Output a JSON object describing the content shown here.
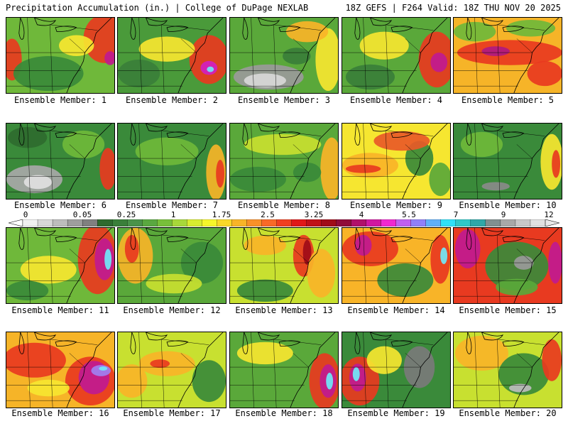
{
  "header": {
    "left": "Precipitation Accumulation (in.) | College of DuPage NEXLAB",
    "right": "18Z GEFS | F264 Valid: 18Z THU NOV 20 2025"
  },
  "colorbar": {
    "ticks": [
      "0",
      "0.05",
      "0.25",
      "1",
      "1.75",
      "2.5",
      "3.25",
      "4",
      "5.5",
      "7",
      "9",
      "12"
    ],
    "colors": [
      "#f0f0f0",
      "#d8d8d8",
      "#bdbdbd",
      "#9e9e9e",
      "#808080",
      "#2f6b2f",
      "#3a7f3a",
      "#4a934a",
      "#5aa840",
      "#78c03a",
      "#a8d83a",
      "#d8ec30",
      "#f6f62a",
      "#f8d828",
      "#f8b428",
      "#f89028",
      "#f86a28",
      "#f04020",
      "#e01818",
      "#c01018",
      "#a00c18",
      "#900c3a",
      "#b0106a",
      "#d018a0",
      "#f028d0",
      "#c060f0",
      "#9080f8",
      "#60b0f8",
      "#30e0f8",
      "#30c8c8",
      "#30a8a8",
      "#809090",
      "#a8a8a8",
      "#c8c8c8",
      "#e0e0e0"
    ]
  },
  "panels": [
    {
      "label": "Ensemble Member: 1",
      "base": "#6fb83a",
      "blobs": [
        {
          "cx": 140,
          "cy": 30,
          "rx": 30,
          "ry": 35,
          "c": "#e83a20"
        },
        {
          "cx": 148,
          "cy": 58,
          "rx": 8,
          "ry": 10,
          "c": "#c01a90"
        },
        {
          "cx": 8,
          "cy": 60,
          "rx": 14,
          "ry": 30,
          "c": "#e83a20"
        },
        {
          "cx": 60,
          "cy": 80,
          "rx": 50,
          "ry": 25,
          "c": "#3a8a3a"
        },
        {
          "cx": 100,
          "cy": 40,
          "rx": 25,
          "ry": 15,
          "c": "#f6e630"
        }
      ]
    },
    {
      "label": "Ensemble Member: 2",
      "base": "#4a9a3a",
      "blobs": [
        {
          "cx": 130,
          "cy": 60,
          "rx": 28,
          "ry": 35,
          "c": "#e83a20"
        },
        {
          "cx": 130,
          "cy": 72,
          "rx": 12,
          "ry": 10,
          "c": "#d020c0"
        },
        {
          "cx": 132,
          "cy": 74,
          "rx": 5,
          "ry": 4,
          "c": "#70e8f8"
        },
        {
          "cx": 70,
          "cy": 45,
          "rx": 40,
          "ry": 18,
          "c": "#f6e630"
        },
        {
          "cx": 30,
          "cy": 80,
          "rx": 30,
          "ry": 20,
          "c": "#3a7f3a"
        }
      ]
    },
    {
      "label": "Ensemble Member: 3",
      "base": "#5aa83a",
      "blobs": [
        {
          "cx": 55,
          "cy": 85,
          "rx": 50,
          "ry": 18,
          "c": "#9a9a9a"
        },
        {
          "cx": 50,
          "cy": 90,
          "rx": 30,
          "ry": 10,
          "c": "#d8d8d8"
        },
        {
          "cx": 140,
          "cy": 60,
          "rx": 18,
          "ry": 45,
          "c": "#f6e630"
        },
        {
          "cx": 110,
          "cy": 20,
          "rx": 30,
          "ry": 15,
          "c": "#f8b428"
        },
        {
          "cx": 95,
          "cy": 55,
          "rx": 20,
          "ry": 12,
          "c": "#3a7f3a"
        }
      ]
    },
    {
      "label": "Ensemble Member: 4",
      "base": "#5aa83a",
      "blobs": [
        {
          "cx": 135,
          "cy": 60,
          "rx": 26,
          "ry": 40,
          "c": "#e83a20"
        },
        {
          "cx": 138,
          "cy": 64,
          "rx": 12,
          "ry": 14,
          "c": "#c01a90"
        },
        {
          "cx": 60,
          "cy": 40,
          "rx": 35,
          "ry": 20,
          "c": "#f6e630"
        },
        {
          "cx": 40,
          "cy": 85,
          "rx": 35,
          "ry": 18,
          "c": "#3a7f3a"
        }
      ]
    },
    {
      "label": "Ensemble Member: 5",
      "base": "#f6b428",
      "blobs": [
        {
          "cx": 80,
          "cy": 50,
          "rx": 75,
          "ry": 18,
          "c": "#e83a20"
        },
        {
          "cx": 60,
          "cy": 48,
          "rx": 20,
          "ry": 7,
          "c": "#b01a80"
        },
        {
          "cx": 130,
          "cy": 80,
          "rx": 25,
          "ry": 18,
          "c": "#e83a20"
        },
        {
          "cx": 30,
          "cy": 20,
          "rx": 30,
          "ry": 14,
          "c": "#6fb83a"
        },
        {
          "cx": 110,
          "cy": 15,
          "rx": 35,
          "ry": 12,
          "c": "#6fb83a"
        }
      ]
    },
    {
      "label": "Ensemble Member: 6",
      "base": "#3a8a3a",
      "blobs": [
        {
          "cx": 40,
          "cy": 80,
          "rx": 40,
          "ry": 20,
          "c": "#a8a8a8"
        },
        {
          "cx": 45,
          "cy": 84,
          "rx": 20,
          "ry": 10,
          "c": "#e0e0e0"
        },
        {
          "cx": 145,
          "cy": 65,
          "rx": 12,
          "ry": 30,
          "c": "#e83a20"
        },
        {
          "cx": 110,
          "cy": 30,
          "rx": 30,
          "ry": 20,
          "c": "#6fb83a"
        },
        {
          "cx": 30,
          "cy": 20,
          "rx": 28,
          "ry": 15,
          "c": "#2f6b2f"
        }
      ]
    },
    {
      "label": "Ensemble Member: 7",
      "base": "#3a8a3a",
      "blobs": [
        {
          "cx": 140,
          "cy": 70,
          "rx": 14,
          "ry": 40,
          "c": "#f6b428"
        },
        {
          "cx": 70,
          "cy": 40,
          "rx": 45,
          "ry": 20,
          "c": "#6fb83a"
        },
        {
          "cx": 146,
          "cy": 72,
          "rx": 6,
          "ry": 20,
          "c": "#e83a20"
        }
      ]
    },
    {
      "label": "Ensemble Member: 8",
      "base": "#5aa83a",
      "blobs": [
        {
          "cx": 145,
          "cy": 65,
          "rx": 16,
          "ry": 45,
          "c": "#f8b428"
        },
        {
          "cx": 75,
          "cy": 30,
          "rx": 55,
          "ry": 15,
          "c": "#c8e030"
        },
        {
          "cx": 40,
          "cy": 80,
          "rx": 40,
          "ry": 18,
          "c": "#3a8a3a"
        },
        {
          "cx": 110,
          "cy": 70,
          "rx": 20,
          "ry": 14,
          "c": "#3a8a3a"
        }
      ]
    },
    {
      "label": "Ensemble Member: 9",
      "base": "#f6e630",
      "blobs": [
        {
          "cx": 40,
          "cy": 60,
          "rx": 40,
          "ry": 18,
          "c": "#f8b428"
        },
        {
          "cx": 30,
          "cy": 65,
          "rx": 25,
          "ry": 6,
          "c": "#e83a20"
        },
        {
          "cx": 110,
          "cy": 50,
          "rx": 20,
          "ry": 25,
          "c": "#3a8a3a"
        },
        {
          "cx": 85,
          "cy": 25,
          "rx": 40,
          "ry": 14,
          "c": "#e85a28"
        },
        {
          "cx": 140,
          "cy": 80,
          "rx": 16,
          "ry": 24,
          "c": "#5aa83a"
        }
      ]
    },
    {
      "label": "Ensemble Member: 10",
      "base": "#3a8a3a",
      "blobs": [
        {
          "cx": 140,
          "cy": 55,
          "rx": 16,
          "ry": 40,
          "c": "#f6e630"
        },
        {
          "cx": 146,
          "cy": 58,
          "rx": 6,
          "ry": 20,
          "c": "#e83a20"
        },
        {
          "cx": 40,
          "cy": 30,
          "rx": 30,
          "ry": 18,
          "c": "#6fb83a"
        },
        {
          "cx": 60,
          "cy": 90,
          "rx": 20,
          "ry": 6,
          "c": "#8a8a8a"
        }
      ]
    },
    {
      "label": "Ensemble Member: 11",
      "base": "#6fb83a",
      "blobs": [
        {
          "cx": 130,
          "cy": 45,
          "rx": 28,
          "ry": 50,
          "c": "#e83a20"
        },
        {
          "cx": 140,
          "cy": 45,
          "rx": 14,
          "ry": 30,
          "c": "#c01a90"
        },
        {
          "cx": 145,
          "cy": 45,
          "rx": 5,
          "ry": 15,
          "c": "#70e8f8"
        },
        {
          "cx": 60,
          "cy": 60,
          "rx": 40,
          "ry": 20,
          "c": "#f6e630"
        },
        {
          "cx": 30,
          "cy": 90,
          "rx": 30,
          "ry": 14,
          "c": "#3a8a3a"
        }
      ]
    },
    {
      "label": "Ensemble Member: 12",
      "base": "#5aa83a",
      "blobs": [
        {
          "cx": 25,
          "cy": 40,
          "rx": 25,
          "ry": 40,
          "c": "#f6b428"
        },
        {
          "cx": 20,
          "cy": 30,
          "rx": 10,
          "ry": 20,
          "c": "#e83a20"
        },
        {
          "cx": 120,
          "cy": 50,
          "rx": 30,
          "ry": 30,
          "c": "#3a8a3a"
        },
        {
          "cx": 80,
          "cy": 80,
          "rx": 40,
          "ry": 14,
          "c": "#c8e030"
        }
      ]
    },
    {
      "label": "Ensemble Member: 13",
      "base": "#c8e030",
      "blobs": [
        {
          "cx": 105,
          "cy": 40,
          "rx": 15,
          "ry": 30,
          "c": "#e83a20"
        },
        {
          "cx": 110,
          "cy": 35,
          "rx": 6,
          "ry": 18,
          "c": "#a00c18"
        },
        {
          "cx": 130,
          "cy": 65,
          "rx": 20,
          "ry": 35,
          "c": "#f8b428"
        },
        {
          "cx": 50,
          "cy": 90,
          "rx": 40,
          "ry": 16,
          "c": "#3a8a3a"
        },
        {
          "cx": 50,
          "cy": 25,
          "rx": 30,
          "ry": 14,
          "c": "#f8b428"
        }
      ]
    },
    {
      "label": "Ensemble Member: 14",
      "base": "#f8b428",
      "blobs": [
        {
          "cx": 40,
          "cy": 30,
          "rx": 40,
          "ry": 25,
          "c": "#e83a20"
        },
        {
          "cx": 30,
          "cy": 25,
          "rx": 12,
          "ry": 15,
          "c": "#c01a90"
        },
        {
          "cx": 140,
          "cy": 45,
          "rx": 14,
          "ry": 35,
          "c": "#e83a20"
        },
        {
          "cx": 145,
          "cy": 40,
          "rx": 5,
          "ry": 12,
          "c": "#70e8f8"
        },
        {
          "cx": 90,
          "cy": 75,
          "rx": 40,
          "ry": 24,
          "c": "#3a8a3a"
        }
      ]
    },
    {
      "label": "Ensemble Member: 15",
      "base": "#e83a20",
      "blobs": [
        {
          "cx": 90,
          "cy": 55,
          "rx": 45,
          "ry": 35,
          "c": "#3a8a3a"
        },
        {
          "cx": 20,
          "cy": 30,
          "rx": 18,
          "ry": 28,
          "c": "#c01a90"
        },
        {
          "cx": 145,
          "cy": 50,
          "rx": 10,
          "ry": 30,
          "c": "#c01a90"
        },
        {
          "cx": 90,
          "cy": 85,
          "rx": 30,
          "ry": 12,
          "c": "#5aa83a"
        },
        {
          "cx": 100,
          "cy": 50,
          "rx": 14,
          "ry": 10,
          "c": "#9a9a9a"
        }
      ]
    },
    {
      "label": "Ensemble Member: 16",
      "base": "#f6b428",
      "blobs": [
        {
          "cx": 40,
          "cy": 40,
          "rx": 45,
          "ry": 25,
          "c": "#e83a20"
        },
        {
          "cx": 120,
          "cy": 70,
          "rx": 36,
          "ry": 35,
          "c": "#e83a20"
        },
        {
          "cx": 125,
          "cy": 65,
          "rx": 22,
          "ry": 24,
          "c": "#c01a90"
        },
        {
          "cx": 135,
          "cy": 55,
          "rx": 14,
          "ry": 8,
          "c": "#a080f0"
        },
        {
          "cx": 138,
          "cy": 52,
          "rx": 6,
          "ry": 3,
          "c": "#70e8f8"
        },
        {
          "cx": 60,
          "cy": 80,
          "rx": 30,
          "ry": 12,
          "c": "#f6e630"
        }
      ]
    },
    {
      "label": "Ensemble Member: 17",
      "base": "#c8e030",
      "blobs": [
        {
          "cx": 70,
          "cy": 45,
          "rx": 40,
          "ry": 18,
          "c": "#f8b428"
        },
        {
          "cx": 60,
          "cy": 45,
          "rx": 14,
          "ry": 6,
          "c": "#e83a20"
        },
        {
          "cx": 130,
          "cy": 70,
          "rx": 24,
          "ry": 30,
          "c": "#3a8a3a"
        },
        {
          "cx": 20,
          "cy": 70,
          "rx": 22,
          "ry": 24,
          "c": "#f8b428"
        }
      ]
    },
    {
      "label": "Ensemble Member: 18",
      "base": "#5aa83a",
      "blobs": [
        {
          "cx": 135,
          "cy": 70,
          "rx": 22,
          "ry": 40,
          "c": "#e83a20"
        },
        {
          "cx": 140,
          "cy": 70,
          "rx": 12,
          "ry": 24,
          "c": "#c01a90"
        },
        {
          "cx": 142,
          "cy": 70,
          "rx": 5,
          "ry": 12,
          "c": "#70e8f8"
        },
        {
          "cx": 50,
          "cy": 30,
          "rx": 40,
          "ry": 16,
          "c": "#f6e630"
        }
      ]
    },
    {
      "label": "Ensemble Member: 19",
      "base": "#3a8a3a",
      "blobs": [
        {
          "cx": 25,
          "cy": 70,
          "rx": 28,
          "ry": 35,
          "c": "#e83a20"
        },
        {
          "cx": 22,
          "cy": 65,
          "rx": 12,
          "ry": 20,
          "c": "#c01a90"
        },
        {
          "cx": 20,
          "cy": 60,
          "rx": 5,
          "ry": 10,
          "c": "#70e8f8"
        },
        {
          "cx": 60,
          "cy": 40,
          "rx": 25,
          "ry": 20,
          "c": "#f6e630"
        },
        {
          "cx": 110,
          "cy": 50,
          "rx": 22,
          "ry": 30,
          "c": "#7a7a7a"
        }
      ]
    },
    {
      "label": "Ensemble Member: 20",
      "base": "#c8e030",
      "blobs": [
        {
          "cx": 40,
          "cy": 30,
          "rx": 38,
          "ry": 25,
          "c": "#f8b428"
        },
        {
          "cx": 100,
          "cy": 60,
          "rx": 36,
          "ry": 30,
          "c": "#3a8a3a"
        },
        {
          "cx": 95,
          "cy": 80,
          "rx": 16,
          "ry": 6,
          "c": "#bdbdbd"
        },
        {
          "cx": 140,
          "cy": 40,
          "rx": 14,
          "ry": 30,
          "c": "#e83a20"
        }
      ]
    }
  ]
}
